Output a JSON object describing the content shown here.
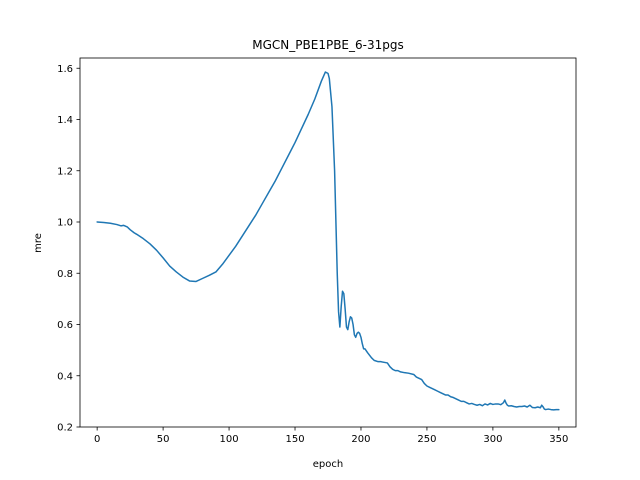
{
  "chart_data": {
    "type": "line",
    "title": "MGCN_PBE1PBE_6-31pgs",
    "xlabel": "epoch",
    "ylabel": "mre",
    "xlim": [
      -13,
      363
    ],
    "ylim": [
      0.2,
      1.64
    ],
    "xticks": [
      0,
      50,
      100,
      150,
      200,
      250,
      300,
      350
    ],
    "yticks": [
      0.2,
      0.4,
      0.6,
      0.8,
      1.0,
      1.2,
      1.4,
      1.6
    ],
    "ytick_labels": [
      "0.2",
      "0.4",
      "0.6",
      "0.8",
      "1.0",
      "1.2",
      "1.4",
      "1.6"
    ],
    "grid": false,
    "series": [
      {
        "color": "#1f77b4",
        "x": [
          0,
          5,
          10,
          15,
          18,
          20,
          23,
          25,
          28,
          30,
          35,
          40,
          45,
          50,
          55,
          60,
          65,
          70,
          75,
          80,
          85,
          90,
          95,
          100,
          105,
          110,
          115,
          120,
          125,
          130,
          135,
          140,
          145,
          150,
          155,
          160,
          165,
          170,
          173,
          175,
          176,
          178,
          180,
          182,
          183,
          184,
          185,
          186,
          187,
          188,
          189,
          190,
          191,
          192,
          193,
          194,
          195,
          196,
          197,
          198,
          199,
          200,
          201,
          202,
          203,
          205,
          208,
          210,
          213,
          215,
          218,
          220,
          222,
          224,
          226,
          228,
          230,
          233,
          236,
          240,
          242,
          244,
          246,
          248,
          250,
          252,
          254,
          256,
          258,
          260,
          262,
          264,
          266,
          268,
          270,
          272,
          274,
          276,
          278,
          280,
          282,
          284,
          286,
          288,
          290,
          292,
          294,
          296,
          298,
          300,
          302,
          304,
          306,
          308,
          309,
          310,
          311,
          312,
          314,
          316,
          318,
          320,
          322,
          324,
          326,
          328,
          330,
          332,
          334,
          336,
          337,
          338,
          339,
          340,
          342,
          344,
          346,
          348,
          350
        ],
        "values": [
          1.0,
          0.998,
          0.995,
          0.99,
          0.985,
          0.987,
          0.98,
          0.97,
          0.958,
          0.952,
          0.935,
          0.915,
          0.89,
          0.86,
          0.828,
          0.805,
          0.785,
          0.77,
          0.768,
          0.78,
          0.792,
          0.805,
          0.835,
          0.87,
          0.905,
          0.945,
          0.985,
          1.025,
          1.07,
          1.115,
          1.16,
          1.21,
          1.26,
          1.31,
          1.365,
          1.42,
          1.48,
          1.55,
          1.585,
          1.58,
          1.56,
          1.45,
          1.2,
          0.8,
          0.65,
          0.59,
          0.67,
          0.73,
          0.72,
          0.66,
          0.59,
          0.58,
          0.61,
          0.63,
          0.625,
          0.6,
          0.56,
          0.55,
          0.565,
          0.57,
          0.565,
          0.55,
          0.525,
          0.505,
          0.505,
          0.49,
          0.47,
          0.46,
          0.455,
          0.455,
          0.452,
          0.45,
          0.435,
          0.425,
          0.42,
          0.42,
          0.415,
          0.412,
          0.41,
          0.405,
          0.395,
          0.39,
          0.385,
          0.37,
          0.36,
          0.355,
          0.35,
          0.345,
          0.34,
          0.335,
          0.33,
          0.325,
          0.325,
          0.318,
          0.315,
          0.31,
          0.305,
          0.3,
          0.3,
          0.295,
          0.29,
          0.292,
          0.288,
          0.285,
          0.288,
          0.283,
          0.29,
          0.286,
          0.292,
          0.288,
          0.29,
          0.29,
          0.287,
          0.295,
          0.305,
          0.293,
          0.285,
          0.282,
          0.283,
          0.28,
          0.278,
          0.28,
          0.28,
          0.282,
          0.278,
          0.285,
          0.276,
          0.275,
          0.278,
          0.275,
          0.285,
          0.279,
          0.27,
          0.268,
          0.27,
          0.268,
          0.267,
          0.268,
          0.268
        ]
      }
    ]
  }
}
